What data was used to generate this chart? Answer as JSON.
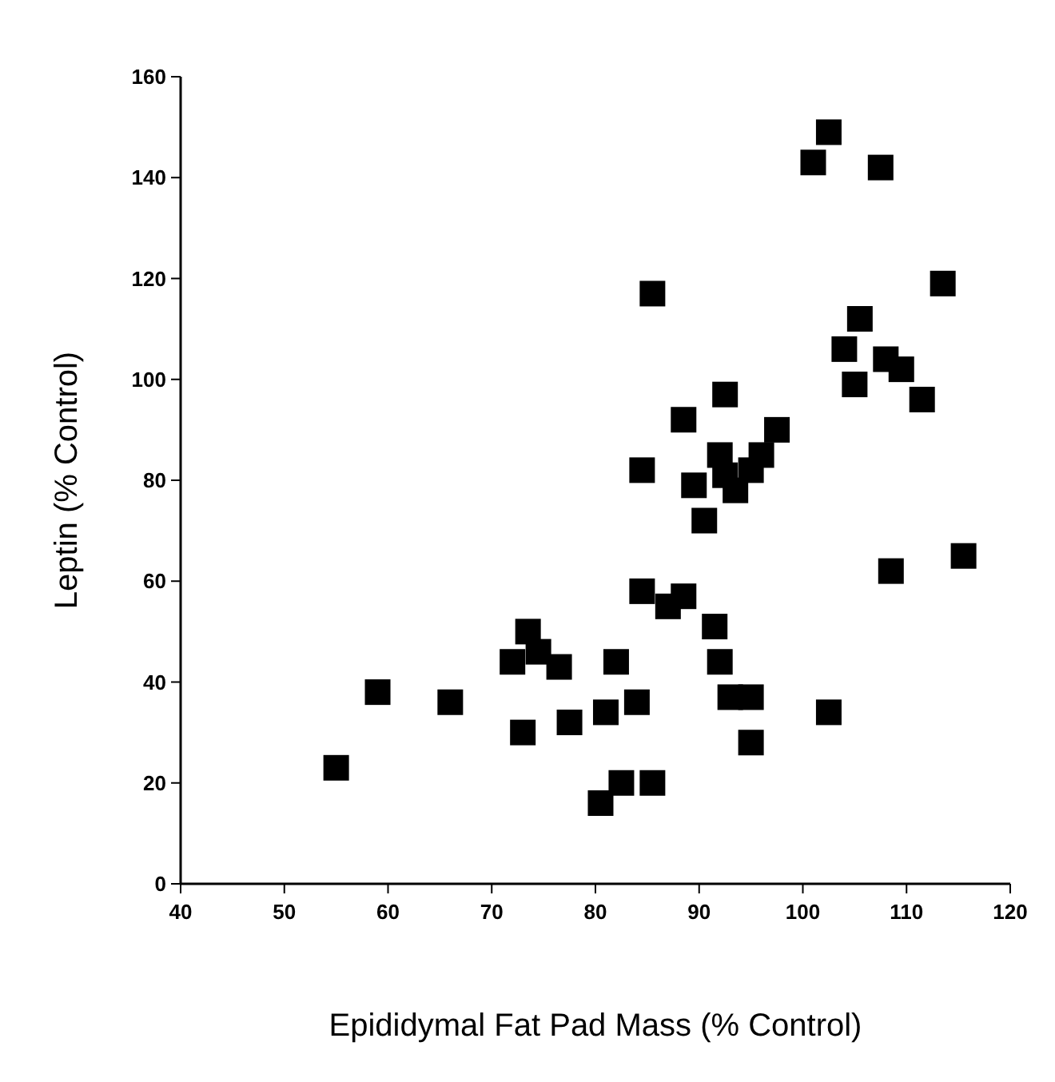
{
  "chart_data": {
    "type": "scatter",
    "xlabel": "Epididymal Fat Pad Mass (% Control)",
    "ylabel": "Leptin (% Control)",
    "marker": "square",
    "grid": false,
    "xlim": [
      40,
      120
    ],
    "xticks": [
      40,
      50,
      60,
      70,
      80,
      90,
      100,
      110,
      120
    ],
    "ylim": [
      0,
      160
    ],
    "yticks": [
      0,
      20,
      40,
      60,
      80,
      100,
      120,
      140,
      160
    ],
    "series": [
      {
        "color": "#000000",
        "x": [
          55,
          59,
          66,
          72,
          73,
          73.5,
          74.5,
          76.5,
          77.5,
          80.5,
          81,
          82,
          82.5,
          84,
          84.5,
          84.5,
          85.5,
          85.5,
          87,
          88.5,
          88.5,
          89.5,
          90.5,
          91.5,
          92,
          92,
          92.5,
          92.5,
          93,
          93.5,
          95,
          95,
          95,
          96,
          97.5,
          101,
          102.5,
          102.5,
          104,
          105,
          105.5,
          107.5,
          108,
          108.5,
          109.5,
          111.5,
          113.5,
          115.5
        ],
        "values": [
          23,
          38,
          36,
          44,
          30,
          50,
          46,
          43,
          32,
          16,
          34,
          44,
          20,
          36,
          58,
          82,
          20,
          117,
          55,
          57,
          92,
          79,
          72,
          51,
          44,
          85,
          97,
          81,
          37,
          78,
          37,
          28,
          82,
          85,
          90,
          143,
          149,
          34,
          106,
          99,
          112,
          142,
          104,
          62,
          102,
          96,
          119,
          65
        ]
      }
    ]
  }
}
